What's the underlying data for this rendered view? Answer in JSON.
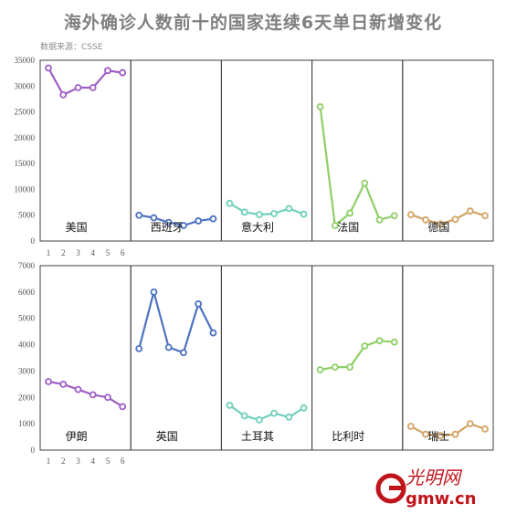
{
  "title": "海外确诊人数前十的国家连续6天单日新增变化",
  "source": "数据来源：CSSE",
  "logo": {
    "text": "光明网",
    "domain": "gmw.cn",
    "color": "#c0141b"
  },
  "chart_data": [
    {
      "type": "line",
      "row": "top",
      "ylim": [
        0,
        35000
      ],
      "yticks": [
        0,
        5000,
        10000,
        15000,
        20000,
        25000,
        30000,
        35000
      ],
      "xticks": [
        "1",
        "2",
        "3",
        "4",
        "5",
        "6"
      ],
      "panels": [
        {
          "label": "美国",
          "color": "#9e5fc4",
          "values": [
            33500,
            28300,
            29700,
            29700,
            33000,
            32600
          ]
        },
        {
          "label": "西班牙",
          "color": "#4c72c0",
          "values": [
            5000,
            4500,
            3600,
            3000,
            3900,
            4300
          ]
        },
        {
          "label": "意大利",
          "color": "#6fd0bb",
          "values": [
            7300,
            5600,
            5100,
            5300,
            6300,
            5200
          ]
        },
        {
          "label": "法国",
          "color": "#8fcf67",
          "values": [
            26000,
            3000,
            5400,
            11200,
            4100,
            4900
          ]
        },
        {
          "label": "德国",
          "color": "#d3a466",
          "values": [
            5100,
            4100,
            3300,
            4200,
            5800,
            4900
          ]
        }
      ]
    },
    {
      "type": "line",
      "row": "bottom",
      "ylim": [
        0,
        7000
      ],
      "yticks": [
        0,
        1000,
        2000,
        3000,
        4000,
        5000,
        6000,
        7000
      ],
      "xticks": [
        "1",
        "2",
        "3",
        "4",
        "5",
        "6"
      ],
      "panels": [
        {
          "label": "伊朗",
          "color": "#9e5fc4",
          "values": [
            2600,
            2500,
            2300,
            2100,
            2000,
            1650
          ]
        },
        {
          "label": "英国",
          "color": "#4c72c0",
          "values": [
            3850,
            6000,
            3900,
            3700,
            5550,
            4450
          ]
        },
        {
          "label": "土耳其",
          "color": "#6fd0bb",
          "values": [
            1700,
            1300,
            1150,
            1400,
            1250,
            1600
          ]
        },
        {
          "label": "比利时",
          "color": "#8fcf67",
          "values": [
            3050,
            3150,
            3150,
            3950,
            4150,
            4100
          ]
        },
        {
          "label": "瑞士",
          "color": "#d3a466",
          "values": [
            900,
            600,
            550,
            600,
            1000,
            800
          ]
        }
      ]
    }
  ]
}
